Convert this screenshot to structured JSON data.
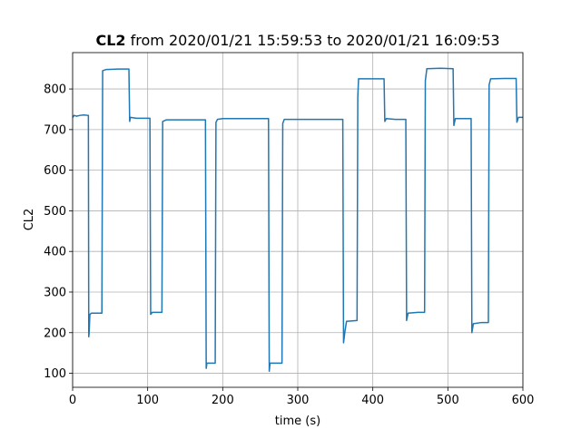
{
  "chart_data": {
    "type": "line",
    "title_bold": "CL2",
    "title": "from 2020/01/21 15:59:53 to 2020/01/21 16:09:53",
    "xlabel": "time (s)",
    "ylabel": "CL2",
    "color": "#1f77b4",
    "grid": true,
    "xlim": [
      0,
      600
    ],
    "ylim": [
      65.5,
      889.5
    ],
    "xticks": [
      0,
      100,
      200,
      300,
      400,
      500,
      600
    ],
    "yticks": [
      100,
      200,
      300,
      400,
      500,
      600,
      700,
      800
    ],
    "x": [
      0,
      2,
      5,
      10,
      15,
      20,
      21,
      21.5,
      22,
      23,
      25,
      30,
      39,
      40,
      45,
      60,
      75,
      76,
      77,
      85,
      95,
      103,
      104,
      106,
      119,
      120,
      125,
      150,
      177,
      178,
      179,
      190,
      191,
      193,
      200,
      230,
      261,
      262,
      263,
      279,
      280,
      282,
      300,
      330,
      360,
      361,
      363,
      365,
      379,
      380,
      381,
      400,
      415,
      416,
      418,
      430,
      444,
      445,
      447,
      460,
      469,
      470,
      472,
      490,
      507,
      508,
      510,
      520,
      531,
      532,
      534,
      545,
      554,
      555,
      557,
      575,
      591,
      592,
      594,
      600
    ],
    "values": [
      730,
      735,
      733,
      735,
      736,
      735,
      735,
      190,
      200,
      245,
      248,
      248,
      248,
      845,
      848,
      849,
      849,
      720,
      730,
      728,
      728,
      728,
      245,
      250,
      250,
      720,
      724,
      724,
      724,
      112,
      125,
      125,
      718,
      725,
      727,
      727,
      727,
      105,
      125,
      125,
      715,
      725,
      725,
      725,
      725,
      175,
      205,
      228,
      230,
      780,
      825,
      825,
      825,
      720,
      727,
      725,
      725,
      230,
      248,
      250,
      250,
      820,
      850,
      851,
      850,
      710,
      727,
      727,
      727,
      200,
      222,
      225,
      225,
      810,
      825,
      826,
      826,
      718,
      730,
      730
    ]
  }
}
